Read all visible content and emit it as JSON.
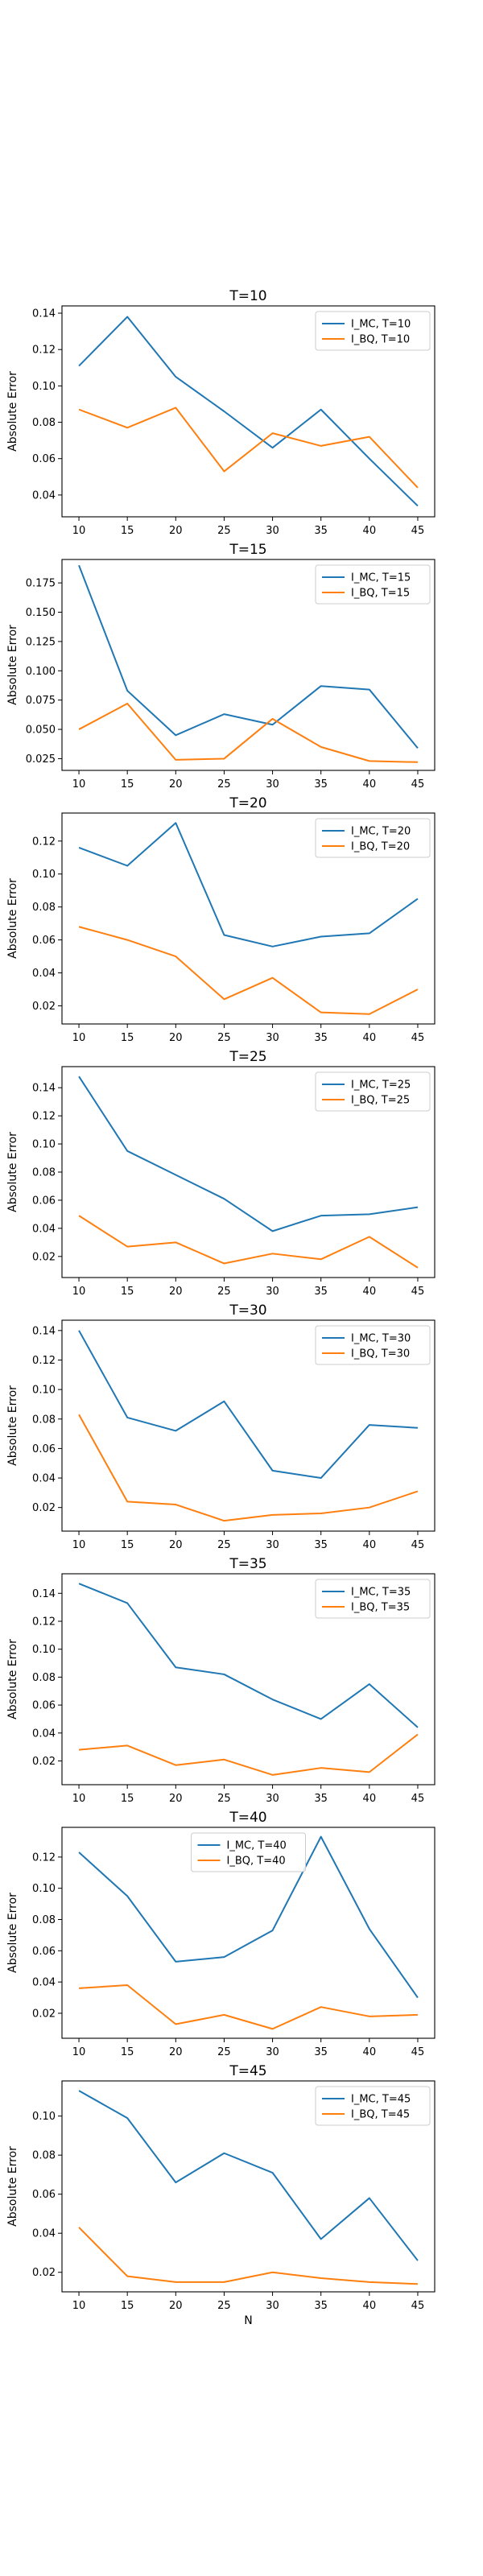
{
  "colors": {
    "mc": "#1f77b4",
    "bq": "#ff7f0e",
    "axis": "#000000"
  },
  "chart_data": [
    {
      "type": "line",
      "title": "T=10",
      "xlabel": "",
      "ylabel": "Absolute Error",
      "x": [
        10,
        15,
        20,
        25,
        30,
        35,
        40,
        45
      ],
      "ylim": [
        0.028,
        0.144
      ],
      "yticks": [
        0.04,
        0.06,
        0.08,
        0.1,
        0.12,
        0.14
      ],
      "ytick_fmt": 2,
      "legend_position": "upper right",
      "series": [
        {
          "name": "I_MC, T=10",
          "values": [
            0.111,
            0.138,
            0.105,
            0.086,
            0.066,
            0.087,
            0.06,
            0.034
          ]
        },
        {
          "name": "I_BQ, T=10",
          "values": [
            0.087,
            0.077,
            0.088,
            0.053,
            0.074,
            0.067,
            0.072,
            0.044
          ]
        }
      ]
    },
    {
      "type": "line",
      "title": "T=15",
      "xlabel": "",
      "ylabel": "Absolute Error",
      "x": [
        10,
        15,
        20,
        25,
        30,
        35,
        40,
        45
      ],
      "ylim": [
        0.015,
        0.195
      ],
      "yticks": [
        0.025,
        0.05,
        0.075,
        0.1,
        0.125,
        0.15,
        0.175
      ],
      "ytick_fmt": 3,
      "legend_position": "upper right",
      "series": [
        {
          "name": "I_MC, T=15",
          "values": [
            0.19,
            0.083,
            0.045,
            0.063,
            0.054,
            0.087,
            0.084,
            0.034
          ]
        },
        {
          "name": "I_BQ, T=15",
          "values": [
            0.05,
            0.072,
            0.024,
            0.025,
            0.059,
            0.035,
            0.023,
            0.022
          ]
        }
      ]
    },
    {
      "type": "line",
      "title": "T=20",
      "xlabel": "",
      "ylabel": "Absolute Error",
      "x": [
        10,
        15,
        20,
        25,
        30,
        35,
        40,
        45
      ],
      "ylim": [
        0.009,
        0.137
      ],
      "yticks": [
        0.02,
        0.04,
        0.06,
        0.08,
        0.1,
        0.12
      ],
      "ytick_fmt": 2,
      "legend_position": "upper right",
      "series": [
        {
          "name": "I_MC, T=20",
          "values": [
            0.116,
            0.105,
            0.131,
            0.063,
            0.056,
            0.062,
            0.064,
            0.085
          ]
        },
        {
          "name": "I_BQ, T=20",
          "values": [
            0.068,
            0.06,
            0.05,
            0.024,
            0.037,
            0.016,
            0.015,
            0.03
          ]
        }
      ]
    },
    {
      "type": "line",
      "title": "T=25",
      "xlabel": "",
      "ylabel": "Absolute Error",
      "x": [
        10,
        15,
        20,
        25,
        30,
        35,
        40,
        45
      ],
      "ylim": [
        0.005,
        0.155
      ],
      "yticks": [
        0.02,
        0.04,
        0.06,
        0.08,
        0.1,
        0.12,
        0.14
      ],
      "ytick_fmt": 2,
      "legend_position": "upper right",
      "series": [
        {
          "name": "I_MC, T=25",
          "values": [
            0.148,
            0.095,
            0.078,
            0.061,
            0.038,
            0.049,
            0.05,
            0.055
          ]
        },
        {
          "name": "I_BQ, T=25",
          "values": [
            0.049,
            0.027,
            0.03,
            0.015,
            0.022,
            0.018,
            0.034,
            0.012
          ]
        }
      ]
    },
    {
      "type": "line",
      "title": "T=30",
      "xlabel": "",
      "ylabel": "Absolute Error",
      "x": [
        10,
        15,
        20,
        25,
        30,
        35,
        40,
        45
      ],
      "ylim": [
        0.004,
        0.147
      ],
      "yticks": [
        0.02,
        0.04,
        0.06,
        0.08,
        0.1,
        0.12,
        0.14
      ],
      "ytick_fmt": 2,
      "legend_position": "upper right",
      "series": [
        {
          "name": "I_MC, T=30",
          "values": [
            0.14,
            0.081,
            0.072,
            0.092,
            0.045,
            0.04,
            0.076,
            0.074
          ]
        },
        {
          "name": "I_BQ, T=30",
          "values": [
            0.083,
            0.024,
            0.022,
            0.011,
            0.015,
            0.016,
            0.02,
            0.031
          ]
        }
      ]
    },
    {
      "type": "line",
      "title": "T=35",
      "xlabel": "",
      "ylabel": "Absolute Error",
      "x": [
        10,
        15,
        20,
        25,
        30,
        35,
        40,
        45
      ],
      "ylim": [
        0.003,
        0.154
      ],
      "yticks": [
        0.02,
        0.04,
        0.06,
        0.08,
        0.1,
        0.12,
        0.14
      ],
      "ytick_fmt": 2,
      "legend_position": "upper right",
      "series": [
        {
          "name": "I_MC, T=35",
          "values": [
            0.147,
            0.133,
            0.087,
            0.082,
            0.064,
            0.05,
            0.075,
            0.044
          ]
        },
        {
          "name": "I_BQ, T=35",
          "values": [
            0.028,
            0.031,
            0.017,
            0.021,
            0.01,
            0.015,
            0.012,
            0.039
          ]
        }
      ]
    },
    {
      "type": "line",
      "title": "T=40",
      "xlabel": "",
      "ylabel": "Absolute Error",
      "x": [
        10,
        15,
        20,
        25,
        30,
        35,
        40,
        45
      ],
      "ylim": [
        0.004,
        0.139
      ],
      "yticks": [
        0.02,
        0.04,
        0.06,
        0.08,
        0.1,
        0.12
      ],
      "ytick_fmt": 2,
      "legend_position": "upper center",
      "series": [
        {
          "name": "I_MC, T=40",
          "values": [
            0.123,
            0.095,
            0.053,
            0.056,
            0.073,
            0.133,
            0.074,
            0.03
          ]
        },
        {
          "name": "I_BQ, T=40",
          "values": [
            0.036,
            0.038,
            0.013,
            0.019,
            0.01,
            0.024,
            0.018,
            0.019
          ]
        }
      ]
    },
    {
      "type": "line",
      "title": "T=45",
      "xlabel": "N",
      "ylabel": "Absolute Error",
      "x": [
        10,
        15,
        20,
        25,
        30,
        35,
        40,
        45
      ],
      "ylim": [
        0.01,
        0.118
      ],
      "yticks": [
        0.02,
        0.04,
        0.06,
        0.08,
        0.1
      ],
      "ytick_fmt": 2,
      "legend_position": "upper right",
      "series": [
        {
          "name": "I_MC, T=45",
          "values": [
            0.113,
            0.099,
            0.066,
            0.081,
            0.071,
            0.037,
            0.058,
            0.026
          ]
        },
        {
          "name": "I_BQ, T=45",
          "values": [
            0.043,
            0.018,
            0.015,
            0.015,
            0.02,
            0.017,
            0.015,
            0.014
          ]
        }
      ]
    }
  ]
}
